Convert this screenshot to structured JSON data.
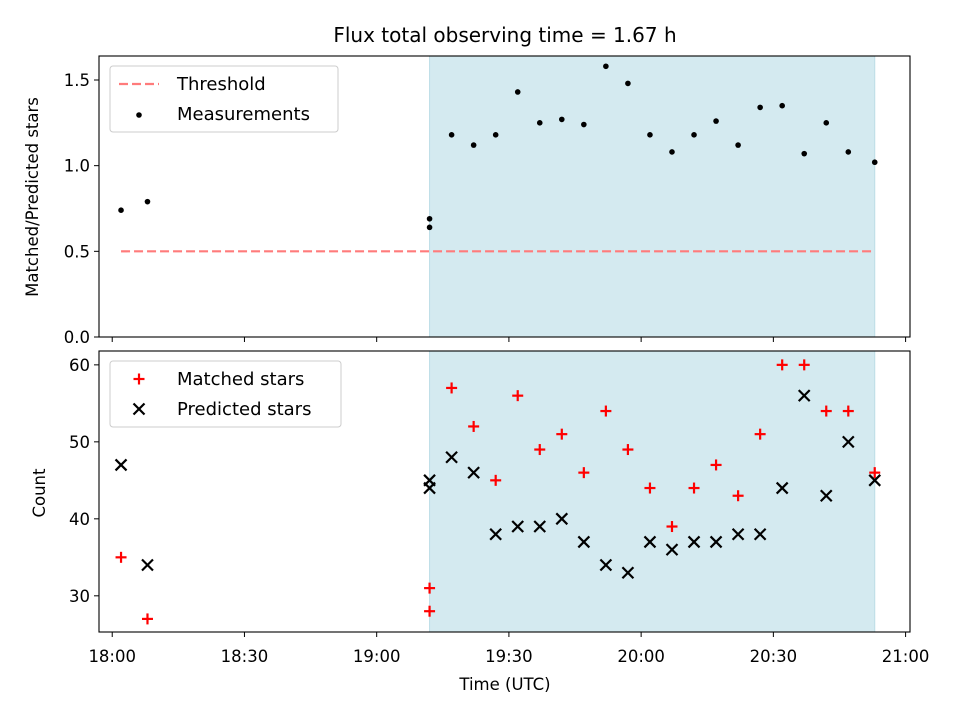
{
  "title": "Flux total observing time = 1.67 h",
  "chart_data": [
    {
      "type": "scatter",
      "ylabel": "Matched/Predicted stars",
      "ylim": [
        0,
        1.64
      ],
      "yticks": [
        0.0,
        0.5,
        1.0,
        1.5
      ],
      "ytick_labels": [
        "0.0",
        "0.5",
        "1.0",
        "1.5"
      ],
      "legend_position": "upper-left",
      "shaded_region": {
        "x_start": "19:12",
        "x_end": "20:53",
        "color": "#d4eaf0"
      },
      "threshold": {
        "name": "Threshold",
        "value": 0.5,
        "x_start": "18:02",
        "x_end": "20:53",
        "color": "#ff7b7b",
        "style": "dashed"
      },
      "series": [
        {
          "name": "Measurements",
          "color": "#000000",
          "marker": "dot",
          "x": [
            "18:02",
            "18:08",
            "19:12",
            "19:12",
            "19:17",
            "19:22",
            "19:27",
            "19:32",
            "19:37",
            "19:42",
            "19:47",
            "19:52",
            "19:57",
            "20:02",
            "20:07",
            "20:12",
            "20:17",
            "20:22",
            "20:27",
            "20:32",
            "20:37",
            "20:42",
            "20:47",
            "20:53"
          ],
          "y": [
            0.74,
            0.79,
            0.69,
            0.64,
            1.18,
            1.12,
            1.18,
            1.43,
            1.25,
            1.27,
            1.24,
            1.58,
            1.48,
            1.18,
            1.08,
            1.18,
            1.26,
            1.12,
            1.34,
            1.35,
            1.07,
            1.25,
            1.08,
            1.02
          ]
        }
      ]
    },
    {
      "type": "scatter",
      "xlabel": "Time (UTC)",
      "ylabel": "Count",
      "ylim": [
        25.3,
        61.8
      ],
      "yticks": [
        30,
        40,
        50,
        60
      ],
      "ytick_labels": [
        "30",
        "40",
        "50",
        "60"
      ],
      "xlim": [
        "17:57",
        "21:01"
      ],
      "xticks": [
        "18:00",
        "18:30",
        "19:00",
        "19:30",
        "20:00",
        "20:30",
        "21:00"
      ],
      "legend_position": "upper-left",
      "shaded_region": {
        "x_start": "19:12",
        "x_end": "20:53",
        "color": "#d4eaf0"
      },
      "series": [
        {
          "name": "Matched stars",
          "color": "#ff0000",
          "marker": "plus",
          "x": [
            "18:02",
            "18:08",
            "19:12",
            "19:12",
            "19:17",
            "19:22",
            "19:27",
            "19:32",
            "19:37",
            "19:42",
            "19:47",
            "19:52",
            "19:57",
            "20:02",
            "20:07",
            "20:12",
            "20:17",
            "20:22",
            "20:27",
            "20:32",
            "20:37",
            "20:42",
            "20:47",
            "20:53"
          ],
          "y": [
            35,
            27,
            31,
            28,
            57,
            52,
            45,
            56,
            49,
            51,
            46,
            54,
            49,
            44,
            39,
            44,
            47,
            43,
            51,
            60,
            60,
            54,
            54,
            46
          ]
        },
        {
          "name": "Predicted stars",
          "color": "#000000",
          "marker": "x",
          "x": [
            "18:02",
            "18:08",
            "19:12",
            "19:12",
            "19:17",
            "19:22",
            "19:27",
            "19:32",
            "19:37",
            "19:42",
            "19:47",
            "19:52",
            "19:57",
            "20:02",
            "20:07",
            "20:12",
            "20:17",
            "20:22",
            "20:27",
            "20:32",
            "20:37",
            "20:42",
            "20:47",
            "20:53"
          ],
          "y": [
            47,
            34,
            45,
            44,
            48,
            46,
            38,
            39,
            39,
            40,
            37,
            34,
            33,
            37,
            36,
            37,
            37,
            38,
            38,
            44,
            56,
            43,
            50,
            45
          ]
        }
      ]
    }
  ]
}
